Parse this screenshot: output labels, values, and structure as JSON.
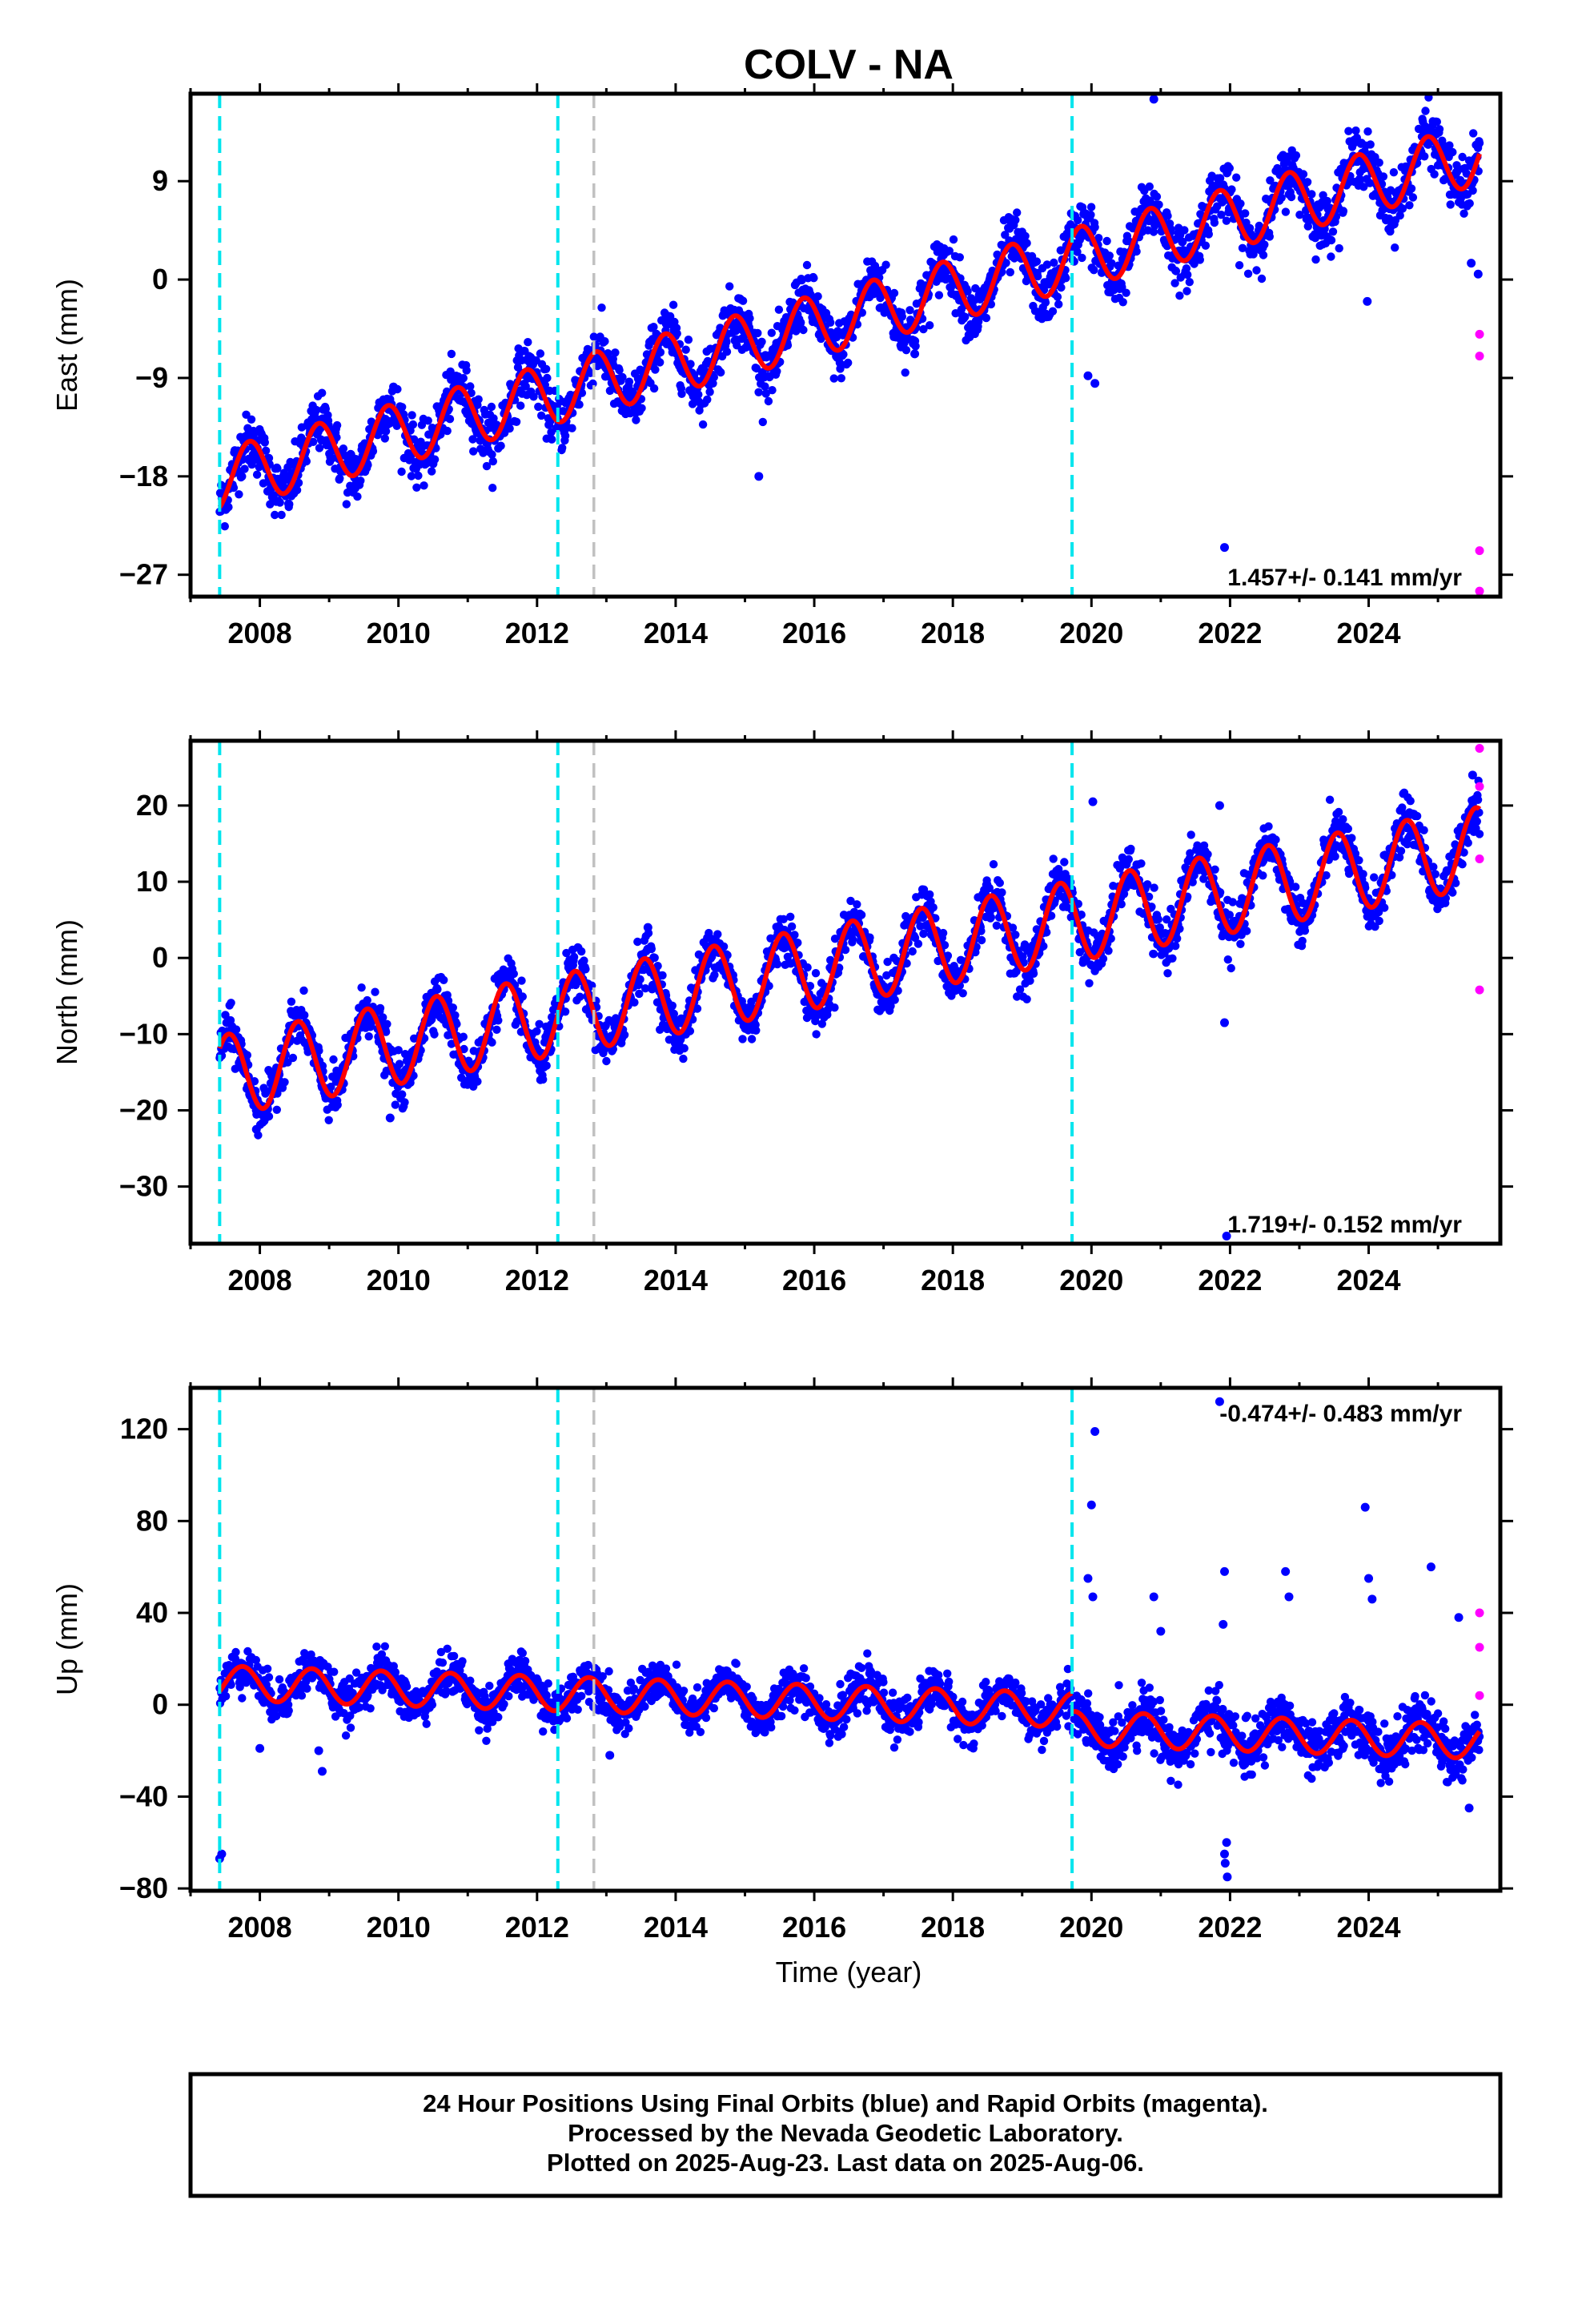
{
  "title": "COLV - NA",
  "x_axis_title": "Time (year)",
  "footer": [
    "24 Hour Positions Using Final Orbits (blue) and Rapid Orbits (magenta).",
    "Processed by the Nevada Geodetic Laboratory.",
    "Plotted on 2025-Aug-23. Last data on 2025-Aug-06."
  ],
  "colors": {
    "final": "#0000ff",
    "rapid": "#ff00ff",
    "model": "#ff0000",
    "equipment_change": "#00e5ee",
    "other_event": "#c0c0c0"
  },
  "chart_data": [
    {
      "type": "scatter",
      "component": "East",
      "ylabel": "East (mm)",
      "xlabel": "",
      "xlim": [
        2007.0,
        2025.9
      ],
      "ylim": [
        -29,
        17
      ],
      "xticks": [
        2008,
        2010,
        2012,
        2014,
        2016,
        2018,
        2020,
        2022,
        2024
      ],
      "yticks": [
        -27,
        -18,
        -9,
        0,
        9
      ],
      "rate_label": "1.457+/- 0.141 mm/yr",
      "rate_position": "bottom-right",
      "model": {
        "start_year": 2007.42,
        "end_year": 2025.6,
        "start_value": -18.3,
        "end_value": 11.5,
        "annual_amplitude": 2.8,
        "phase_peak_year_fraction": 0.85
      },
      "steps": [
        {
          "year": 2019.72,
          "offset": 0
        }
      ],
      "scatter_sigma": 1.3,
      "event_lines": [
        {
          "year": 2007.42,
          "kind": "equipment_change"
        },
        {
          "year": 2012.3,
          "kind": "equipment_change"
        },
        {
          "year": 2012.82,
          "kind": "other_event"
        },
        {
          "year": 2019.72,
          "kind": "equipment_change"
        }
      ],
      "outliers_final": [
        [
          2015.2,
          -18
        ],
        [
          2019.95,
          -8.8
        ],
        [
          2020.05,
          -9.5
        ],
        [
          2021.92,
          -24.5
        ],
        [
          2023.98,
          -2
        ],
        [
          2017.45,
          -6.8
        ],
        [
          2020.9,
          16.5
        ],
        [
          2025.48,
          1.5
        ],
        [
          2025.58,
          0.5
        ]
      ],
      "rapid_points": [
        [
          2025.6,
          -5
        ],
        [
          2025.6,
          -7
        ],
        [
          2025.6,
          -24.8
        ],
        [
          2025.6,
          -28.5
        ]
      ]
    },
    {
      "type": "scatter",
      "component": "North",
      "ylabel": "North (mm)",
      "xlabel": "",
      "xlim": [
        2007.0,
        2025.9
      ],
      "ylim": [
        -37.5,
        28.5
      ],
      "xticks": [
        2008,
        2010,
        2012,
        2014,
        2016,
        2018,
        2020,
        2022,
        2024
      ],
      "yticks": [
        -30,
        -20,
        -10,
        0,
        10,
        20
      ],
      "rate_label": "1.719+/- 0.152 mm/yr",
      "rate_position": "bottom-right",
      "model": {
        "start_year": 2007.42,
        "end_year": 2025.6,
        "start_value": -15.5,
        "end_value": 14.5,
        "annual_amplitude": 5.3,
        "phase_peak_year_fraction": 0.55
      },
      "steps": [],
      "scatter_sigma": 1.6,
      "event_lines": [
        {
          "year": 2007.42,
          "kind": "equipment_change"
        },
        {
          "year": 2012.3,
          "kind": "equipment_change"
        },
        {
          "year": 2012.82,
          "kind": "other_event"
        },
        {
          "year": 2019.72,
          "kind": "equipment_change"
        }
      ],
      "outliers_final": [
        [
          2007.95,
          -22.5
        ],
        [
          2009.88,
          -21
        ],
        [
          2020.02,
          20.5
        ],
        [
          2021.92,
          -8.5
        ],
        [
          2021.85,
          20
        ],
        [
          2021.95,
          -36.5
        ],
        [
          2013.6,
          4
        ],
        [
          2025.5,
          24
        ]
      ],
      "rapid_points": [
        [
          2025.6,
          27.5
        ],
        [
          2025.6,
          22.5
        ],
        [
          2025.6,
          13
        ],
        [
          2025.6,
          -4.2
        ]
      ]
    },
    {
      "type": "scatter",
      "component": "Up",
      "ylabel": "Up (mm)",
      "xlabel": "Time (year)",
      "xlim": [
        2007.0,
        2025.9
      ],
      "ylim": [
        -81,
        138
      ],
      "xticks": [
        2008,
        2010,
        2012,
        2014,
        2016,
        2018,
        2020,
        2022,
        2024
      ],
      "yticks": [
        -80,
        -40,
        0,
        40,
        80,
        120
      ],
      "rate_label": "-0.474+/- 0.483 mm/yr",
      "rate_position": "top-right",
      "model": {
        "start_year": 2007.42,
        "end_year": 2025.6,
        "start_value": 9.5,
        "end_value": -8,
        "annual_amplitude": 7.5,
        "phase_peak_year_fraction": 0.75
      },
      "steps": [
        {
          "year": 2019.72,
          "offset": -8
        }
      ],
      "scatter_sigma": 4.5,
      "event_lines": [
        {
          "year": 2007.42,
          "kind": "equipment_change"
        },
        {
          "year": 2012.3,
          "kind": "equipment_change"
        },
        {
          "year": 2012.82,
          "kind": "other_event"
        },
        {
          "year": 2019.72,
          "kind": "equipment_change"
        }
      ],
      "outliers_final": [
        [
          2007.45,
          -65
        ],
        [
          2007.42,
          -67
        ],
        [
          2008.0,
          -19
        ],
        [
          2008.85,
          -20
        ],
        [
          2008.9,
          -29
        ],
        [
          2020.05,
          119
        ],
        [
          2020.0,
          87
        ],
        [
          2019.95,
          55
        ],
        [
          2020.02,
          47
        ],
        [
          2020.9,
          47
        ],
        [
          2021.0,
          32
        ],
        [
          2021.92,
          58
        ],
        [
          2021.9,
          35
        ],
        [
          2021.95,
          -60
        ],
        [
          2021.92,
          -65
        ],
        [
          2021.96,
          -75
        ],
        [
          2021.93,
          -69
        ],
        [
          2022.8,
          58
        ],
        [
          2022.85,
          47
        ],
        [
          2023.95,
          86
        ],
        [
          2024.0,
          55
        ],
        [
          2024.05,
          46
        ],
        [
          2024.9,
          60
        ],
        [
          2025.3,
          38
        ],
        [
          2025.45,
          -45
        ],
        [
          2013.05,
          -22
        ],
        [
          2021.85,
          132
        ]
      ],
      "rapid_points": [
        [
          2025.6,
          40
        ],
        [
          2025.6,
          25
        ],
        [
          2025.6,
          4
        ]
      ]
    }
  ]
}
